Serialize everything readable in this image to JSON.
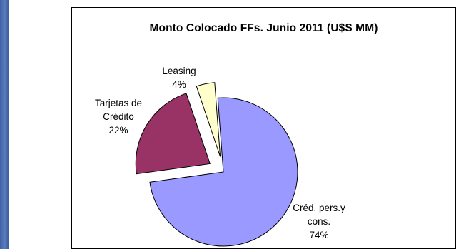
{
  "chart_data": {
    "type": "pie",
    "title": "Monto Colocado FFs. Junio 2011 (U$S MM)",
    "slices": [
      {
        "label_lines": [
          "Créd. pers.y",
          "cons."
        ],
        "percent_label": "74%",
        "value": 74,
        "color": "#9999ff",
        "exploded": false
      },
      {
        "label_lines": [
          "Tarjetas de",
          "Crédito"
        ],
        "percent_label": "22%",
        "value": 22,
        "color": "#993366",
        "exploded": true
      },
      {
        "label_lines": [
          "Leasing"
        ],
        "percent_label": "4%",
        "value": 4,
        "color": "#ffffcc",
        "exploded": true
      }
    ]
  }
}
